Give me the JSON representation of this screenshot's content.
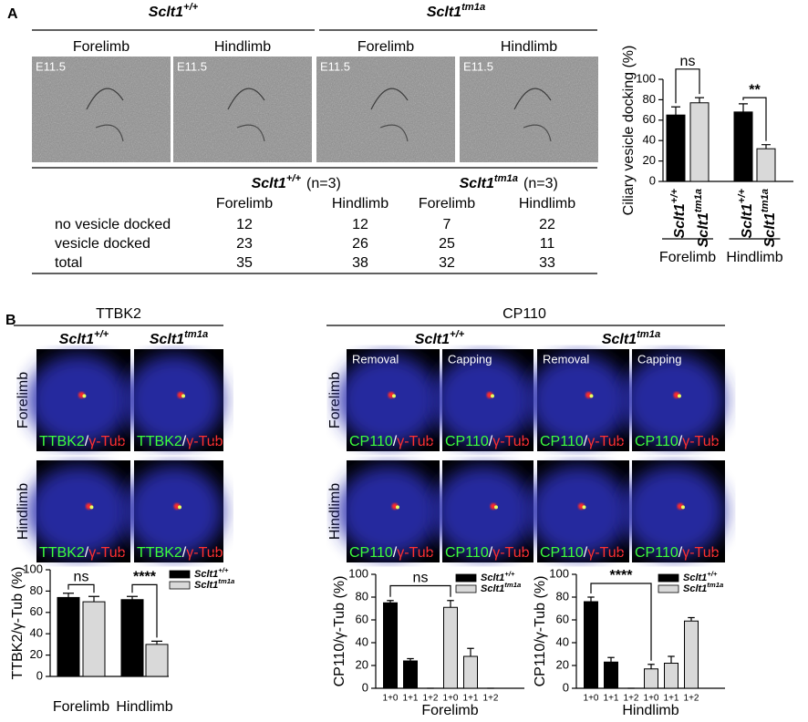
{
  "panel_a": {
    "label": "A",
    "genotypes": [
      {
        "name": "Sclt1",
        "sup": "+/+"
      },
      {
        "name": "Sclt1",
        "sup": "tm1a"
      }
    ],
    "limbs": [
      "Forelimb",
      "Hindlimb"
    ],
    "stage": "E11.5",
    "table": {
      "n_label": "(n=3)",
      "rows": [
        {
          "label": "no vesicle docked",
          "values": [
            12,
            12,
            7,
            22
          ]
        },
        {
          "label": "vesicle docked",
          "values": [
            23,
            26,
            25,
            11
          ]
        },
        {
          "label": "total",
          "values": [
            35,
            38,
            32,
            33
          ]
        }
      ]
    },
    "chart": {
      "type": "bar",
      "ylabel": "Ciliary vesicle docking (%)",
      "categories": [
        "Forelimb",
        "Hindlimb"
      ],
      "ylim": [
        0,
        100
      ],
      "yticks": [
        0,
        20,
        40,
        60,
        80,
        100
      ],
      "series": [
        {
          "name": "Sclt1",
          "sup": "+/+",
          "color": "#000000",
          "values": [
            65,
            68
          ],
          "errors": [
            8,
            8
          ]
        },
        {
          "name": "Sclt1",
          "sup": "tm1a",
          "color": "#d9d9d9",
          "values": [
            77,
            32
          ],
          "errors": [
            5,
            4
          ]
        }
      ],
      "annotations": [
        "ns",
        "**"
      ]
    }
  },
  "panel_b": {
    "label": "B",
    "separator": "/",
    "ref_marker": "γ-Tub",
    "limbs": [
      "Forelimb",
      "Hindlimb"
    ],
    "genotypes": [
      {
        "name": "Sclt1",
        "sup": "+/+"
      },
      {
        "name": "Sclt1",
        "sup": "tm1a"
      }
    ],
    "ttbk2": {
      "title": "TTBK2",
      "chart": {
        "type": "bar",
        "ylabel": "TTBK2/γ-Tub (%)",
        "categories": [
          "Forelimb",
          "Hindlimb"
        ],
        "ylim": [
          0,
          100
        ],
        "yticks": [
          0,
          20,
          40,
          60,
          80,
          100
        ],
        "series": [
          {
            "name": "Sclt1",
            "sup": "+/+",
            "color": "#000000",
            "values": [
              74,
              72
            ],
            "errors": [
              4,
              3
            ]
          },
          {
            "name": "Sclt1",
            "sup": "tm1a",
            "color": "#d9d9d9",
            "values": [
              70,
              30
            ],
            "errors": [
              5,
              3
            ]
          }
        ],
        "annotations": [
          "ns",
          "****"
        ]
      }
    },
    "cp110": {
      "title": "CP110",
      "conditions": [
        "Removal",
        "Capping"
      ],
      "charts": [
        {
          "type": "bar",
          "xlabel": "Forelimb",
          "ylabel": "CP110/γ-Tub (%)",
          "categories": [
            "1+0",
            "1+1",
            "1+2"
          ],
          "ylim": [
            0,
            100
          ],
          "yticks": [
            0,
            20,
            40,
            60,
            80,
            100
          ],
          "series": [
            {
              "name": "Sclt1",
              "sup": "+/+",
              "color": "#000000",
              "values": [
                75,
                24,
                0
              ],
              "errors": [
                2,
                2,
                0
              ]
            },
            {
              "name": "Sclt1",
              "sup": "tm1a",
              "color": "#d9d9d9",
              "values": [
                71,
                28,
                0
              ],
              "errors": [
                6,
                7,
                0
              ]
            }
          ],
          "annotations": [
            "ns"
          ]
        },
        {
          "type": "bar",
          "xlabel": "Hindlimb",
          "ylabel": "CP110/γ-Tub (%)",
          "categories": [
            "1+0",
            "1+1",
            "1+2"
          ],
          "ylim": [
            0,
            100
          ],
          "yticks": [
            0,
            20,
            40,
            60,
            80,
            100
          ],
          "series": [
            {
              "name": "Sclt1",
              "sup": "+/+",
              "color": "#000000",
              "values": [
                76,
                23,
                0
              ],
              "errors": [
                4,
                4,
                0
              ]
            },
            {
              "name": "Sclt1",
              "sup": "tm1a",
              "color": "#d9d9d9",
              "values": [
                17,
                22,
                59
              ],
              "errors": [
                4,
                6,
                3
              ]
            }
          ],
          "annotations": [
            "****"
          ]
        }
      ]
    }
  }
}
